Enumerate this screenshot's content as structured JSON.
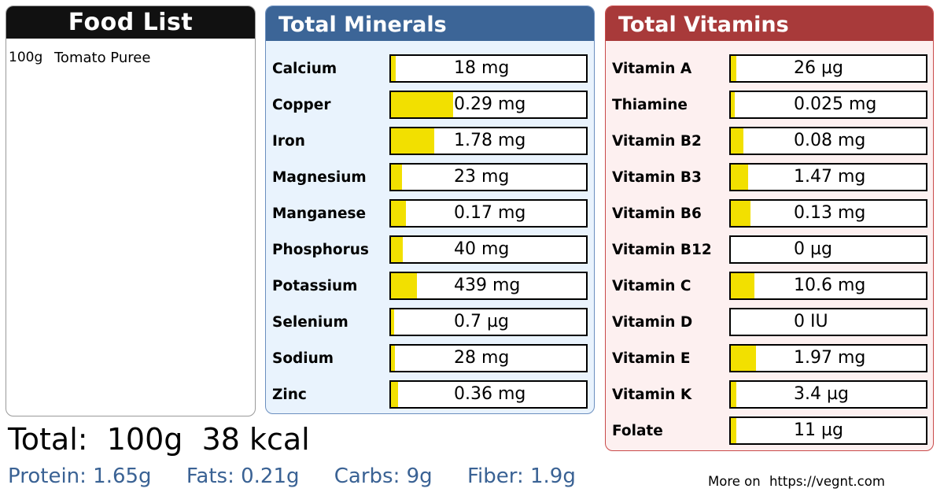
{
  "food_list": {
    "title": "Food List",
    "items": [
      {
        "qty": "100g",
        "name": "Tomato Puree"
      }
    ]
  },
  "minerals": {
    "title": "Total Minerals",
    "accent": "#3c6597",
    "items": [
      {
        "name": "Calcium",
        "value": "18 mg",
        "fill": 0.025
      },
      {
        "name": "Copper",
        "value": "0.29 mg",
        "fill": 0.32
      },
      {
        "name": "Iron",
        "value": "1.78 mg",
        "fill": 0.22
      },
      {
        "name": "Magnesium",
        "value": "23 mg",
        "fill": 0.055
      },
      {
        "name": "Manganese",
        "value": "0.17 mg",
        "fill": 0.075
      },
      {
        "name": "Phosphorus",
        "value": "40 mg",
        "fill": 0.06
      },
      {
        "name": "Potassium",
        "value": "439 mg",
        "fill": 0.135
      },
      {
        "name": "Selenium",
        "value": "0.7 µg",
        "fill": 0.015
      },
      {
        "name": "Sodium",
        "value": "28 mg",
        "fill": 0.02
      },
      {
        "name": "Zinc",
        "value": "0.36 mg",
        "fill": 0.035
      }
    ]
  },
  "vitamins": {
    "title": "Total Vitamins",
    "accent": "#a83a3a",
    "items": [
      {
        "name": "Vitamin A",
        "value": "26 µg",
        "fill": 0.03
      },
      {
        "name": "Thiamine",
        "value": "0.025 mg",
        "fill": 0.02
      },
      {
        "name": "Vitamin B2",
        "value": "0.08 mg",
        "fill": 0.065
      },
      {
        "name": "Vitamin B3",
        "value": "1.47 mg",
        "fill": 0.09
      },
      {
        "name": "Vitamin B6",
        "value": "0.13 mg",
        "fill": 0.1
      },
      {
        "name": "Vitamin B12",
        "value": "0 µg",
        "fill": 0
      },
      {
        "name": "Vitamin C",
        "value": "10.6 mg",
        "fill": 0.12
      },
      {
        "name": "Vitamin D",
        "value": "0 IU",
        "fill": 0
      },
      {
        "name": "Vitamin E",
        "value": "1.97 mg",
        "fill": 0.13
      },
      {
        "name": "Vitamin K",
        "value": "3.4 µg",
        "fill": 0.03
      },
      {
        "name": "Folate",
        "value": "11 µg",
        "fill": 0.03
      }
    ]
  },
  "totals": {
    "label": "Total:",
    "weight": "100g",
    "kcal": "38 kcal"
  },
  "macros": {
    "protein": "Protein: 1.65g",
    "fats": "Fats: 0.21g",
    "carbs": "Carbs: 9g",
    "fiber": "Fiber: 1.9g"
  },
  "footer": {
    "more_label": "More on",
    "link": "https://vegnt.com"
  },
  "colors": {
    "bar_fill": "#f2e000",
    "macro_text": "#3a6294"
  }
}
